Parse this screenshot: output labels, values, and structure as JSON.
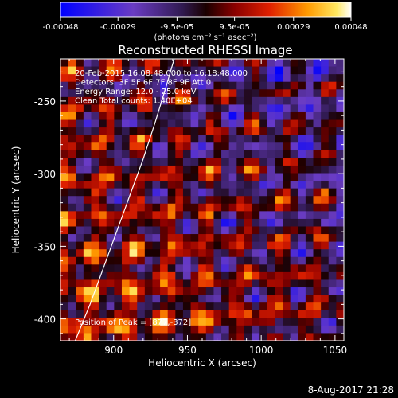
{
  "chart_data": {
    "type": "heatmap",
    "title": "Reconstructed RHESSI Image",
    "xlabel": "Heliocentric X (arcsec)",
    "ylabel": "Heliocentric Y (arcsec)",
    "xlim": [
      864,
      1056
    ],
    "ylim": [
      -415,
      -221
    ],
    "x_ticks": [
      900,
      950,
      1000,
      1050
    ],
    "y_ticks": [
      -250,
      -300,
      -350,
      -400
    ],
    "x_tick_labels": [
      "900",
      "950",
      "1000",
      "1050"
    ],
    "y_tick_labels": [
      "-250",
      "-300",
      "-350",
      "-400"
    ],
    "colorbar": {
      "min": -0.00048,
      "max": 0.00048,
      "tick_values": [
        -0.00048,
        -0.00029,
        -9.5e-05,
        9.5e-05,
        0.00029,
        0.00048
      ],
      "tick_labels": [
        "-0.00048",
        "-0.00029",
        "-9.5e-05",
        "9.5e-05",
        "0.00029",
        "0.00048"
      ],
      "unit_label": "(photons cm⁻² s⁻¹ asec⁻²)"
    },
    "annotations": [
      "20-Feb-2015 16:08:48.000 to 16:18:48.000",
      "Detectors: 3F 5F 6F 7F 8F 9F  Att 0",
      "Energy Range: 12.0 - 25.0 keV",
      "Clean     Total counts: 1.40E+04"
    ],
    "peak_label": "Position of Peak = [877,-372]",
    "peak_position": [
      877,
      -372
    ],
    "limb_curve": {
      "x": [
        874,
        884,
        893,
        902,
        911,
        920,
        928,
        935,
        941
      ],
      "y": [
        -415,
        -390,
        -365,
        -340,
        -315,
        -290,
        -265,
        -242,
        -221
      ]
    },
    "grid": {
      "nx": 37,
      "ny": 37,
      "pattern": "wavy ripple of alternating positive and negative flux; brightest along lower-left, blue negative region in upper right"
    }
  },
  "footer": {
    "date_stamp": "8-Aug-2017 21:28"
  },
  "colors": {
    "background": "#000000",
    "text": "#ffffff",
    "colormap": [
      "#0000ff",
      "#6a3cc4",
      "#3a2a8a",
      "#6a0000",
      "#d11a00",
      "#ff8c00",
      "#ffe040",
      "#ffffff"
    ]
  }
}
